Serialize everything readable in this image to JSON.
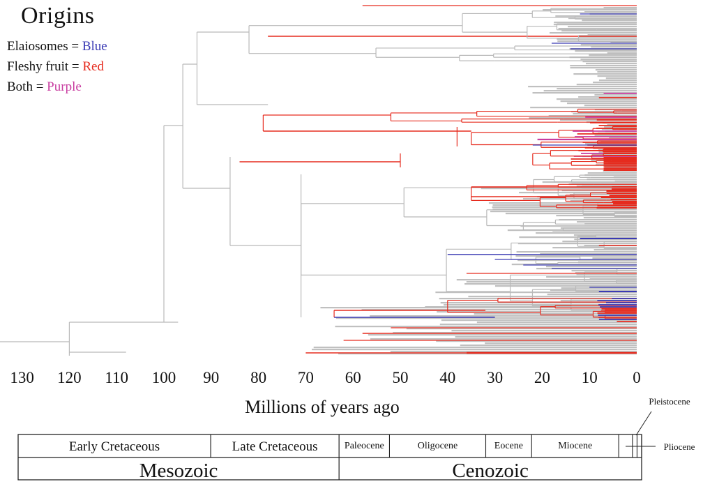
{
  "chart_data": {
    "type": "tree",
    "title": "Origins",
    "legend": [
      {
        "label": "Elaiosomes",
        "sep": " = ",
        "value": "Blue",
        "color": "#3a3ab4"
      },
      {
        "label": "Fleshy fruit",
        "sep": " = ",
        "value": "Red",
        "color": "#e62b1e"
      },
      {
        "label": "Both",
        "sep": " = ",
        "value": "Purple",
        "color": "#c83ca0"
      }
    ],
    "xlabel": "Millions of years ago",
    "xlim": [
      136,
      0
    ],
    "xticks": [
      130,
      120,
      110,
      100,
      90,
      80,
      70,
      60,
      50,
      40,
      30,
      20,
      10,
      0
    ],
    "colors": {
      "plain": "#b9b9b9",
      "fleshy": "#e62b1e",
      "elaiosome": "#3a3ab4",
      "both": "#c83ca0",
      "crown": "#c0c0c0"
    },
    "timescale": {
      "eras": [
        {
          "name": "Mesozoic",
          "from": 136,
          "to": 66
        },
        {
          "name": "Cenozoic",
          "from": 66,
          "to": 0
        }
      ],
      "periods": [
        {
          "name": "Early Cretaceous",
          "from": 136,
          "to": 94
        },
        {
          "name": "Late Cretaceous",
          "from": 94,
          "to": 66
        }
      ],
      "epochs": [
        {
          "name": "Paleocene",
          "from": 66,
          "to": 55
        },
        {
          "name": "Oligocene",
          "from": 55,
          "to": 34
        },
        {
          "name": "Eocene",
          "from": 34,
          "to": 24
        },
        {
          "name": "Miocene",
          "from": 24,
          "to": 5
        },
        {
          "name": "",
          "from": 5,
          "to": 2
        },
        {
          "name": "",
          "from": 2,
          "to": 1
        },
        {
          "name": "",
          "from": 1,
          "to": 0
        }
      ],
      "callouts": [
        "Pleistocene",
        "Pliocene"
      ]
    }
  }
}
